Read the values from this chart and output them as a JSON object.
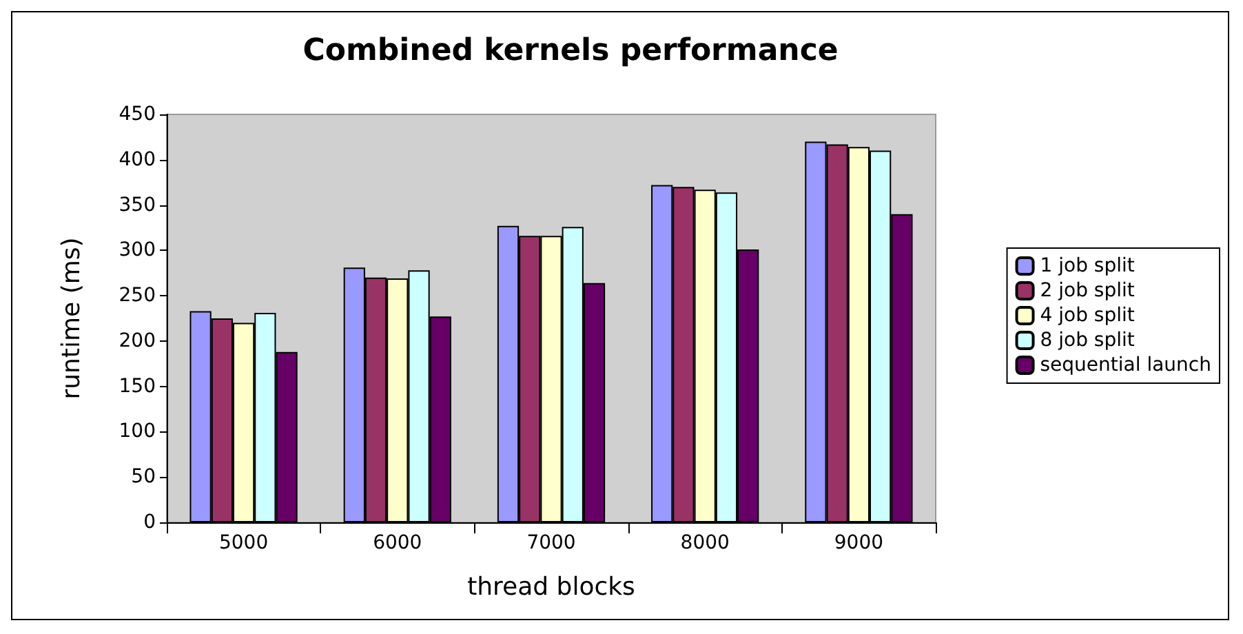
{
  "chart_data": {
    "type": "bar",
    "title": "Combined kernels performance",
    "xlabel": "thread blocks",
    "ylabel": "runtime (ms)",
    "categories": [
      "5000",
      "6000",
      "7000",
      "8000",
      "9000"
    ],
    "series": [
      {
        "name": "1 job split",
        "color": "#9999ff",
        "values": [
          233,
          281,
          327,
          372,
          420
        ]
      },
      {
        "name": "2 job split",
        "color": "#993366",
        "values": [
          225,
          270,
          316,
          370,
          417
        ]
      },
      {
        "name": "4 job split",
        "color": "#ffffcc",
        "values": [
          220,
          269,
          316,
          367,
          414
        ]
      },
      {
        "name": "8 job split",
        "color": "#ccffff",
        "values": [
          231,
          278,
          326,
          364,
          410
        ]
      },
      {
        "name": "sequential launch",
        "color": "#660066",
        "values": [
          188,
          227,
          264,
          301,
          340
        ]
      }
    ],
    "ylim": [
      0,
      450
    ],
    "yticks": [
      0,
      50,
      100,
      150,
      200,
      250,
      300,
      350,
      400,
      450
    ],
    "grid": false,
    "legend": "right"
  }
}
